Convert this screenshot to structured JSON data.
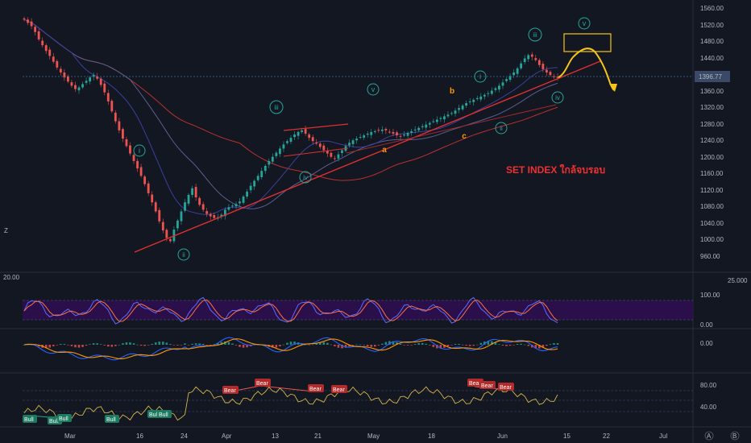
{
  "colors": {
    "background": "#131722",
    "bull_candle": "#26a69a",
    "bear_candle": "#ef5350",
    "trendline": "#e03030",
    "ma_red": "#b83030",
    "ma_navy": "#3c3f9a",
    "ma_slate": "#5b5e8e",
    "wave_label": "#26a69a",
    "abc_label": "#ff9800",
    "projection": "#f5c518",
    "last_price_badge": "#3a4a66",
    "rsi_line": "#d4b54a",
    "stoch_fill": "#2a0f4a",
    "macd_line": "#2962ff",
    "signal_line": "#ff9800"
  },
  "annotation": {
    "title": "SET INDEX ใกล้จบรอบ"
  },
  "price_labels": [
    "1560.00",
    "1520.00",
    "1480.00",
    "1440.00",
    "1400.00",
    "1360.00",
    "1320.00",
    "1280.00",
    "1240.00",
    "1200.00",
    "1160.00",
    "1120.00",
    "1080.00",
    "1040.00",
    "1000.00",
    "960.00"
  ],
  "last_price": "1396.77",
  "osc_labels": {
    "stoch_left": "20.00",
    "stoch_right": "25.000",
    "stoch_top": "100.00",
    "stoch_bottom": "0.00",
    "macd_zero": "0.00",
    "rsi_high": "80.00",
    "rsi_low": "40.00"
  },
  "x_labels": [
    "Mar",
    "16",
    "24",
    "Apr",
    "13",
    "21",
    "May",
    "18",
    "Jun",
    "15",
    "22",
    "Jul"
  ],
  "wave_labels": {
    "i": "i",
    "ii": "ii",
    "iii": "iii",
    "iv": "iv",
    "v": "v",
    "i2": "i",
    "ii2": "ii",
    "iii2": "iii",
    "iv2": "iv",
    "v2": "v",
    "a": "a",
    "b": "b",
    "c": "c"
  },
  "divergence_badges": {
    "bull": [
      "Bull",
      "Bull",
      "Bull",
      "Bull",
      "Bull",
      "Bull"
    ],
    "bear": [
      "Bear",
      "Bear",
      "Bear",
      "Bear",
      "Bear",
      "Bear",
      "Bear",
      "Bear"
    ]
  },
  "buttons": {
    "z_left": "Z",
    "z_right": "A",
    "settings": "B"
  },
  "chart_data": {
    "type": "candlestick",
    "symbol": "SET INDEX",
    "y_range": [
      940,
      1580
    ],
    "y_ticks": [
      960,
      1000,
      1040,
      1080,
      1120,
      1160,
      1200,
      1240,
      1280,
      1320,
      1360,
      1400,
      1440,
      1480,
      1520,
      1560
    ],
    "x_ticks": [
      "Mar",
      "16",
      "24",
      "Apr",
      "13",
      "21",
      "May",
      "18",
      "Jun",
      "15",
      "22",
      "Jul"
    ],
    "close_series": [
      1538,
      1530,
      1522,
      1508,
      1490,
      1476,
      1462,
      1450,
      1436,
      1422,
      1410,
      1398,
      1388,
      1378,
      1370,
      1374,
      1382,
      1390,
      1398,
      1404,
      1395,
      1380,
      1362,
      1340,
      1316,
      1292,
      1270,
      1250,
      1232,
      1214,
      1196,
      1178,
      1160,
      1140,
      1118,
      1096,
      1074,
      1050,
      1028,
      1010,
      1002,
      1030,
      1052,
      1074,
      1096,
      1114,
      1130,
      1108,
      1090,
      1078,
      1068,
      1062,
      1058,
      1060,
      1066,
      1078,
      1084,
      1088,
      1092,
      1098,
      1110,
      1122,
      1136,
      1148,
      1160,
      1172,
      1184,
      1196,
      1206,
      1216,
      1226,
      1236,
      1244,
      1252,
      1260,
      1266,
      1270,
      1262,
      1252,
      1244,
      1238,
      1230,
      1222,
      1214,
      1206,
      1202,
      1212,
      1222,
      1232,
      1240,
      1246,
      1250,
      1254,
      1258,
      1262,
      1266,
      1268,
      1270,
      1272,
      1270,
      1266,
      1262,
      1258,
      1256,
      1260,
      1264,
      1268,
      1272,
      1276,
      1280,
      1284,
      1288,
      1292,
      1296,
      1300,
      1304,
      1308,
      1312,
      1318,
      1324,
      1330,
      1336,
      1340,
      1344,
      1348,
      1352,
      1356,
      1360,
      1366,
      1372,
      1378,
      1386,
      1394,
      1402,
      1410,
      1420,
      1432,
      1444,
      1452,
      1448,
      1440,
      1428,
      1418,
      1410,
      1404,
      1400,
      1397
    ],
    "wave_marks": [
      {
        "label": "i",
        "price": 1215
      },
      {
        "label": "ii",
        "price": 964
      },
      {
        "label": "iii",
        "price": 1330
      },
      {
        "label": "iv",
        "price": 1173
      },
      {
        "label": "v",
        "price": 1365
      },
      {
        "label": "a",
        "price": 1224
      },
      {
        "label": "b",
        "price": 1358
      },
      {
        "label": "c",
        "price": 1259
      },
      {
        "label": "i",
        "price": 1398
      },
      {
        "label": "ii",
        "price": 1282
      },
      {
        "label": "iii",
        "price": 1502
      },
      {
        "label": "iv",
        "price": 1346
      },
      {
        "label": "v",
        "price": 1555
      }
    ],
    "projection_box": {
      "from": 1458,
      "to": 1500
    },
    "oscillators": {
      "stochastic_range": [
        0,
        100
      ],
      "rsi_range": [
        20,
        90
      ],
      "rsi_levels": [
        80,
        40
      ]
    }
  }
}
